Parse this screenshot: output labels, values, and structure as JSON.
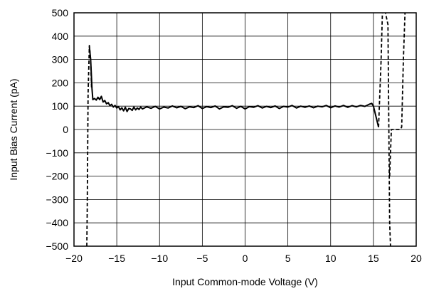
{
  "chart_data": {
    "type": "line",
    "title": "",
    "xlabel": "Input Common-mode Voltage (V)",
    "ylabel": "Input Bias Current (pA)",
    "xlim": [
      -20,
      20
    ],
    "ylim": [
      -500,
      500
    ],
    "x_ticks": [
      -20,
      -15,
      -10,
      -5,
      0,
      5,
      10,
      15,
      20
    ],
    "x_tick_labels": [
      "−20",
      "−15",
      "−10",
      "−5",
      "0",
      "5",
      "10",
      "15",
      "20"
    ],
    "y_ticks": [
      500,
      400,
      300,
      200,
      100,
      0,
      -100,
      -200,
      -300,
      -400,
      -500
    ],
    "y_tick_labels": [
      "500",
      "400",
      "300",
      "200",
      "100",
      "0",
      "−100",
      "−200",
      "−300",
      "−400",
      "−500"
    ],
    "grid": true,
    "series": [
      {
        "style": "solid",
        "color": "#000000",
        "x": [
          -18.2,
          -18.05,
          -17.9,
          -17.8,
          -17.6,
          -17.4,
          -17.2,
          -17.0,
          -16.8,
          -16.6,
          -16.4,
          -16.2,
          -16.0,
          -15.8,
          -15.6,
          -15.4,
          -15.2,
          -15.0,
          -14.8,
          -14.6,
          -14.4,
          -14.2,
          -14.0,
          -13.8,
          -13.6,
          -13.4,
          -13.2,
          -13.0,
          -12.8,
          -12.6,
          -12.4,
          -12.2,
          -12.0,
          -11.5,
          -11.0,
          -10.5,
          -10.0,
          -9.5,
          -9.0,
          -8.5,
          -8.0,
          -7.5,
          -7.0,
          -6.5,
          -6.0,
          -5.5,
          -5.0,
          -4.5,
          -4.0,
          -3.5,
          -3.0,
          -2.5,
          -2.0,
          -1.5,
          -1.0,
          -0.5,
          0.0,
          0.5,
          1.0,
          1.5,
          2.0,
          2.5,
          3.0,
          3.5,
          4.0,
          4.5,
          5.0,
          5.5,
          6.0,
          6.5,
          7.0,
          7.5,
          8.0,
          8.5,
          9.0,
          9.5,
          10.0,
          10.5,
          11.0,
          11.5,
          12.0,
          12.5,
          13.0,
          13.5,
          14.0,
          14.5,
          14.8,
          15.0,
          15.2,
          15.4,
          15.6
        ],
        "y": [
          355,
          300,
          175,
          128,
          133,
          126,
          138,
          128,
          142,
          118,
          124,
          110,
          115,
          102,
          108,
          96,
          103,
          92,
          98,
          84,
          93,
          80,
          95,
          77,
          90,
          88,
          82,
          96,
          84,
          92,
          86,
          96,
          88,
          97,
          91,
          99,
          88,
          96,
          92,
          101,
          93,
          99,
          89,
          97,
          94,
          102,
          90,
          98,
          94,
          101,
          88,
          97,
          95,
          102,
          91,
          99,
          88,
          98,
          95,
          102,
          92,
          99,
          94,
          101,
          90,
          99,
          96,
          103,
          92,
          100,
          95,
          101,
          93,
          100,
          97,
          103,
          93,
          101,
          96,
          103,
          95,
          102,
          97,
          103,
          99,
          108,
          112,
          100,
          70,
          40,
          10
        ]
      },
      {
        "style": "dashed",
        "color": "#000000",
        "x": [
          -18.5,
          -18.45,
          -18.35,
          -18.2,
          -18.05,
          -17.95
        ],
        "y": [
          -500,
          -350,
          150,
          360,
          300,
          175
        ]
      },
      {
        "style": "dashed",
        "color": "#000000",
        "x": [
          15.6,
          15.9,
          16.05,
          16.2
        ],
        "y": [
          10,
          300,
          500,
          510
        ]
      },
      {
        "style": "dashed",
        "color": "#000000",
        "x": [
          16.35,
          16.7,
          16.9,
          17.0,
          17.2
        ],
        "y": [
          510,
          450,
          -400,
          -500,
          -510
        ]
      },
      {
        "style": "dashed",
        "color": "#000000",
        "x": [
          16.9,
          17.1,
          18.1,
          18.3,
          18.5,
          18.7
        ],
        "y": [
          -200,
          0,
          0,
          10,
          300,
          510
        ]
      }
    ]
  }
}
